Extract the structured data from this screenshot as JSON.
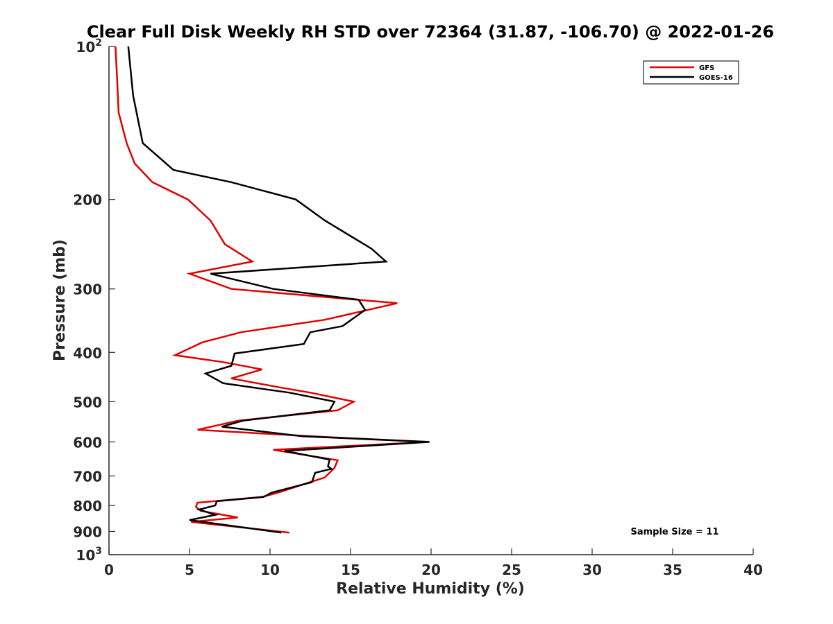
{
  "chart_data": {
    "type": "line",
    "title": "Clear Full Disk Weekly RH STD over 72364 (31.87, -106.70) @ 2022-01-26",
    "xlabel": "Relative Humidity (%)",
    "ylabel": "Pressure (mb)",
    "xlim": [
      0,
      40
    ],
    "ylim": [
      100,
      1000
    ],
    "yscale": "log",
    "yreversed": true,
    "grid": false,
    "legend_position": "top-right",
    "xticks": [
      0,
      5,
      10,
      15,
      20,
      25,
      30,
      35,
      40
    ],
    "xtick_labels": [
      "0",
      "5",
      "10",
      "15",
      "20",
      "25",
      "30",
      "35",
      "40"
    ],
    "yticks": [
      {
        "value": 100,
        "base": "10",
        "exp": "2"
      },
      {
        "value": 200,
        "base": "200",
        "exp": ""
      },
      {
        "value": 300,
        "base": "300",
        "exp": ""
      },
      {
        "value": 400,
        "base": "400",
        "exp": ""
      },
      {
        "value": 500,
        "base": "500",
        "exp": ""
      },
      {
        "value": 600,
        "base": "600",
        "exp": ""
      },
      {
        "value": 700,
        "base": "700",
        "exp": ""
      },
      {
        "value": 800,
        "base": "800",
        "exp": ""
      },
      {
        "value": 900,
        "base": "900",
        "exp": ""
      },
      {
        "value": 1000,
        "base": "10",
        "exp": "3"
      }
    ],
    "series": [
      {
        "name": "GFS",
        "color": "#e00000",
        "points": [
          [
            0.4,
            100
          ],
          [
            0.5,
            115
          ],
          [
            0.6,
            135
          ],
          [
            1.1,
            155
          ],
          [
            1.6,
            170
          ],
          [
            2.7,
            185
          ],
          [
            4.9,
            200
          ],
          [
            6.3,
            220
          ],
          [
            7.2,
            245
          ],
          [
            8.9,
            265
          ],
          [
            5.0,
            280
          ],
          [
            7.6,
            300
          ],
          [
            17.9,
            320
          ],
          [
            13.4,
            345
          ],
          [
            8.2,
            365
          ],
          [
            5.8,
            382
          ],
          [
            4.1,
            405
          ],
          [
            7.1,
            418
          ],
          [
            9.5,
            432
          ],
          [
            7.6,
            450
          ],
          [
            10.5,
            468
          ],
          [
            12.5,
            480
          ],
          [
            15.2,
            500
          ],
          [
            14.2,
            520
          ],
          [
            8.0,
            545
          ],
          [
            5.5,
            568
          ],
          [
            12.6,
            585
          ],
          [
            19.8,
            600
          ],
          [
            10.2,
            622
          ],
          [
            14.2,
            652
          ],
          [
            14.0,
            675
          ],
          [
            13.4,
            705
          ],
          [
            12.2,
            725
          ],
          [
            10.5,
            755
          ],
          [
            9.5,
            770
          ],
          [
            5.5,
            790
          ],
          [
            5.4,
            805
          ],
          [
            5.7,
            820
          ],
          [
            8.0,
            845
          ],
          [
            5.1,
            862
          ],
          [
            11.2,
            905
          ]
        ]
      },
      {
        "name": "GOES-16",
        "color": "#000000",
        "points": [
          [
            1.2,
            100
          ],
          [
            1.5,
            125
          ],
          [
            2.1,
            155
          ],
          [
            4.0,
            175
          ],
          [
            7.6,
            185
          ],
          [
            11.6,
            200
          ],
          [
            13.4,
            220
          ],
          [
            16.3,
            250
          ],
          [
            17.2,
            265
          ],
          [
            6.3,
            280
          ],
          [
            10.2,
            300
          ],
          [
            15.5,
            315
          ],
          [
            15.9,
            330
          ],
          [
            14.5,
            355
          ],
          [
            12.5,
            365
          ],
          [
            12.1,
            385
          ],
          [
            7.8,
            402
          ],
          [
            7.6,
            425
          ],
          [
            6.0,
            440
          ],
          [
            7.1,
            460
          ],
          [
            11.2,
            480
          ],
          [
            14.0,
            500
          ],
          [
            13.7,
            520
          ],
          [
            8.3,
            545
          ],
          [
            7.0,
            560
          ],
          [
            12.0,
            585
          ],
          [
            19.9,
            600
          ],
          [
            10.9,
            625
          ],
          [
            13.7,
            650
          ],
          [
            13.6,
            670
          ],
          [
            13.8,
            678
          ],
          [
            12.8,
            690
          ],
          [
            12.6,
            720
          ],
          [
            10.1,
            755
          ],
          [
            9.6,
            770
          ],
          [
            6.7,
            785
          ],
          [
            6.6,
            800
          ],
          [
            5.6,
            815
          ],
          [
            6.6,
            835
          ],
          [
            5.0,
            855
          ],
          [
            10.7,
            905
          ]
        ]
      }
    ],
    "annotations": [
      {
        "text": "Sample Size = 11"
      }
    ]
  }
}
